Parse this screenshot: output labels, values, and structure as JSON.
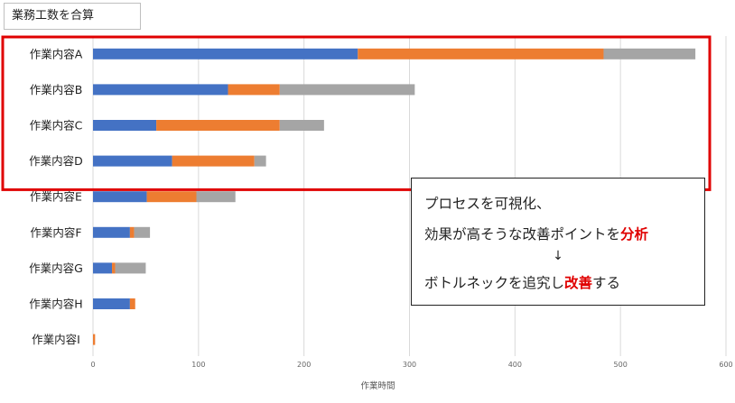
{
  "title_box": "業務工数を合算",
  "chart_data": {
    "type": "bar",
    "orientation": "horizontal",
    "stacked": true,
    "categories": [
      "作業内容A",
      "作業内容B",
      "作業内容C",
      "作業内容D",
      "作業内容E",
      "作業内容F",
      "作業内容G",
      "作業内容H",
      "作業内容I"
    ],
    "series": [
      {
        "color": "#4472c4",
        "values": [
          251,
          128,
          60,
          75,
          51,
          35,
          18,
          35,
          0
        ]
      },
      {
        "color": "#ed7d31",
        "values": [
          233,
          49,
          117,
          78,
          47,
          4,
          3,
          5,
          2
        ]
      },
      {
        "color": "#a5a5a5",
        "values": [
          87,
          128,
          42,
          11,
          37,
          15,
          29,
          0,
          0
        ]
      }
    ],
    "xlim": [
      0,
      600
    ],
    "xticks": [
      0,
      100,
      200,
      300,
      400,
      500,
      600
    ],
    "xlabel": "作業時間",
    "grid": true,
    "highlight": {
      "categories": [
        "作業内容A",
        "作業内容B",
        "作業内容C",
        "作業内容D"
      ],
      "color": "#e00000"
    }
  },
  "callout": {
    "line1": "プロセスを可視化、",
    "line2_pre": "効果が高そうな改善ポイントを",
    "line2_hl": "分析",
    "arrow": "↓",
    "line4_pre": "ボトルネックを追究し",
    "line4_hl": "改善",
    "line4_post": "する"
  }
}
